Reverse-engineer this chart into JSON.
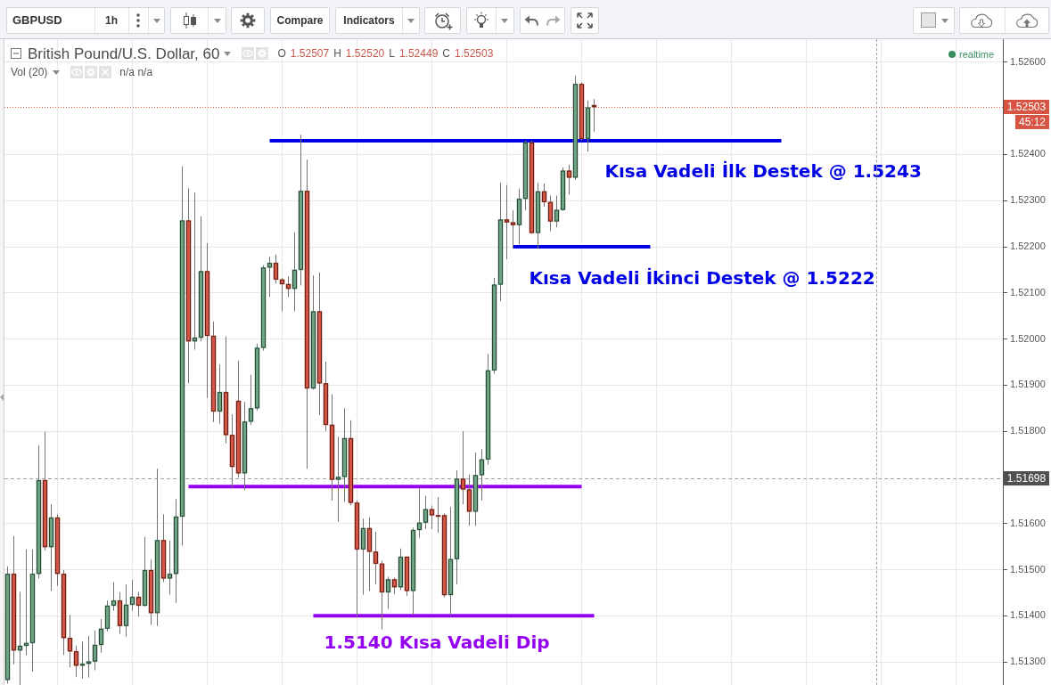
{
  "chart_data": {
    "type": "candlestick",
    "title": "British Pound/U.S. Dollar, 60",
    "categories": [
      null,
      null,
      null,
      null,
      null,
      null,
      null,
      null,
      null,
      null,
      null,
      null,
      null,
      null,
      null,
      null,
      null,
      null,
      null,
      null,
      null,
      null,
      null,
      null,
      null,
      null,
      null,
      null,
      null,
      null,
      null,
      null,
      null,
      null,
      null,
      null,
      null,
      null,
      null,
      null,
      null,
      null,
      null,
      null,
      null,
      null,
      null,
      null,
      null,
      null,
      null,
      null,
      null,
      null,
      null,
      null,
      null,
      null,
      null,
      null,
      null,
      null,
      null,
      null,
      null,
      null,
      null,
      null,
      null,
      null,
      null,
      null,
      null,
      null,
      null,
      null,
      null,
      null,
      null,
      null,
      null,
      null,
      null,
      null,
      null,
      null,
      null,
      null,
      null,
      null,
      null,
      null,
      null,
      null,
      null,
      null,
      null,
      null,
      null,
      null,
      null,
      null,
      null,
      null,
      null,
      null,
      null,
      null,
      null,
      null,
      null,
      null,
      null,
      null,
      null,
      null,
      null,
      null,
      null,
      null,
      null,
      null,
      null,
      null,
      null,
      null,
      null,
      null,
      null,
      null,
      null,
      null,
      null,
      null,
      null,
      null,
      null,
      null,
      null,
      null,
      null,
      null,
      null,
      null,
      null,
      null,
      null,
      null,
      null,
      null,
      null,
      null,
      null,
      null,
      null,
      null,
      null,
      null,
      null,
      null
    ],
    "ohlc": [
      [
        1.51261,
        1.51507,
        1.51253,
        1.51491
      ],
      [
        1.51491,
        1.51573,
        1.51295,
        1.51325
      ],
      [
        1.51325,
        1.51452,
        1.5125,
        1.51335
      ],
      [
        1.51335,
        1.51544,
        1.51314,
        1.51341
      ],
      [
        1.51341,
        1.51544,
        1.51279,
        1.51491
      ],
      [
        1.51491,
        1.5177,
        1.51481,
        1.51694
      ],
      [
        1.51694,
        1.51799,
        1.51542,
        1.51549
      ],
      [
        1.51549,
        1.51642,
        1.51454,
        1.51613
      ],
      [
        1.51613,
        1.5162,
        1.51465,
        1.51491
      ],
      [
        1.51491,
        1.51499,
        1.51315,
        1.51352
      ],
      [
        1.51352,
        1.51402,
        1.51288,
        1.51323
      ],
      [
        1.51323,
        1.51335,
        1.51267,
        1.51292
      ],
      [
        1.51292,
        1.51344,
        1.51264,
        1.51296
      ],
      [
        1.51296,
        1.51356,
        1.51266,
        1.51301
      ],
      [
        1.51301,
        1.51368,
        1.51282,
        1.51337
      ],
      [
        1.51337,
        1.51393,
        1.5132,
        1.51372
      ],
      [
        1.51372,
        1.51433,
        1.51366,
        1.51422
      ],
      [
        1.51422,
        1.51473,
        1.51411,
        1.51433
      ],
      [
        1.51433,
        1.51451,
        1.51361,
        1.51378
      ],
      [
        1.51378,
        1.51468,
        1.51355,
        1.51424
      ],
      [
        1.51424,
        1.51478,
        1.51411,
        1.51441
      ],
      [
        1.51441,
        1.51452,
        1.51398,
        1.51422
      ],
      [
        1.51422,
        1.51571,
        1.5142,
        1.51499
      ],
      [
        1.51499,
        1.51522,
        1.5138,
        1.51406
      ],
      [
        1.51406,
        1.51719,
        1.51378,
        1.51564
      ],
      [
        1.51564,
        1.5162,
        1.51473,
        1.51481
      ],
      [
        1.51481,
        1.51563,
        1.51446,
        1.51491
      ],
      [
        1.51491,
        1.51653,
        1.51428,
        1.51615
      ],
      [
        1.51615,
        1.52374,
        1.51552,
        1.52257
      ],
      [
        1.52257,
        1.52327,
        1.51904,
        1.51995
      ],
      [
        1.51995,
        1.52318,
        1.51977,
        1.52003
      ],
      [
        1.52003,
        1.52266,
        1.51995,
        1.52147
      ],
      [
        1.52147,
        1.52208,
        1.51872,
        1.52007
      ],
      [
        1.52007,
        1.52038,
        1.5182,
        1.51843
      ],
      [
        1.51843,
        1.51945,
        1.51816,
        1.51885
      ],
      [
        1.51885,
        1.52006,
        1.51774,
        1.51792
      ],
      [
        1.51792,
        1.51837,
        1.51678,
        1.51723
      ],
      [
        1.51866,
        1.51953,
        1.517,
        1.51709
      ],
      [
        1.51709,
        1.51864,
        1.51673,
        1.51821
      ],
      [
        1.51821,
        1.51922,
        1.51814,
        1.5185
      ],
      [
        1.5185,
        1.5199,
        1.51845,
        1.51981
      ],
      [
        1.51981,
        1.5216,
        1.51975,
        1.52155
      ],
      [
        1.52155,
        1.52179,
        1.52091,
        1.52165
      ],
      [
        1.52165,
        1.52183,
        1.5212,
        1.52129
      ],
      [
        1.52129,
        1.52133,
        1.5206,
        1.52119
      ],
      [
        1.52119,
        1.52136,
        1.52091,
        1.52109
      ],
      [
        1.52109,
        1.52231,
        1.5206,
        1.5215
      ],
      [
        1.5215,
        1.52443,
        1.52116,
        1.52321
      ],
      [
        1.52321,
        1.52389,
        1.51719,
        1.51893
      ],
      [
        1.51893,
        1.52138,
        1.5189,
        1.5206
      ],
      [
        1.5206,
        1.52144,
        1.51835,
        1.51904
      ],
      [
        1.51904,
        1.51951,
        1.518,
        1.51814
      ],
      [
        1.51814,
        1.5188,
        1.5165,
        1.51695
      ],
      [
        1.51695,
        1.51788,
        1.51604,
        1.51701
      ],
      [
        1.51701,
        1.5185,
        1.51647,
        1.51785
      ],
      [
        1.51785,
        1.51824,
        1.5164,
        1.51645
      ],
      [
        1.51645,
        1.5165,
        1.51398,
        1.51544
      ],
      [
        1.51544,
        1.51611,
        1.51446,
        1.5159
      ],
      [
        1.5159,
        1.51613,
        1.51454,
        1.51539
      ],
      [
        1.51539,
        1.51582,
        1.51468,
        1.51513
      ],
      [
        1.51513,
        1.5152,
        1.5137,
        1.51451
      ],
      [
        1.51451,
        1.51485,
        1.51415,
        1.51479
      ],
      [
        1.51479,
        1.51483,
        1.51447,
        1.51462
      ],
      [
        1.51462,
        1.51546,
        1.51456,
        1.51528
      ],
      [
        1.51528,
        1.51528,
        1.51443,
        1.51454
      ],
      [
        1.51454,
        1.51591,
        1.51402,
        1.51586
      ],
      [
        1.51586,
        1.51678,
        1.51569,
        1.51602
      ],
      [
        1.51602,
        1.5166,
        1.51588,
        1.51631
      ],
      [
        1.51631,
        1.51639,
        1.51588,
        1.51618
      ],
      [
        1.51618,
        1.51657,
        1.5158,
        1.51615
      ],
      [
        1.51618,
        1.51622,
        1.5144,
        1.51445
      ],
      [
        1.51445,
        1.51636,
        1.51401,
        1.51523
      ],
      [
        1.51523,
        1.51715,
        1.51468,
        1.51697
      ],
      [
        1.51697,
        1.518,
        1.51642,
        1.51674
      ],
      [
        1.51674,
        1.51706,
        1.51595,
        1.51626
      ],
      [
        1.51626,
        1.51754,
        1.51595,
        1.51705
      ],
      [
        1.51705,
        1.51761,
        1.5165,
        1.51739
      ],
      [
        1.51739,
        1.51968,
        1.51728,
        1.51932
      ],
      [
        1.51932,
        1.52133,
        1.51925,
        1.52118
      ],
      [
        1.52118,
        1.52339,
        1.52082,
        1.52259
      ],
      [
        1.52259,
        1.52334,
        1.52173,
        1.52253
      ],
      [
        1.52253,
        1.52279,
        1.52196,
        1.52247
      ],
      [
        1.52247,
        1.52326,
        1.52205,
        1.52304
      ],
      [
        1.52304,
        1.5243,
        1.52279,
        1.52426
      ],
      [
        1.52426,
        1.5243,
        1.52228,
        1.5223
      ],
      [
        1.5223,
        1.52339,
        1.52196,
        1.5232
      ],
      [
        1.5232,
        1.52337,
        1.52287,
        1.52297
      ],
      [
        1.52297,
        1.52311,
        1.52234,
        1.52255
      ],
      [
        1.52255,
        1.52311,
        1.52242,
        1.5228
      ],
      [
        1.5228,
        1.52372,
        1.52278,
        1.52365
      ],
      [
        1.52365,
        1.52378,
        1.52313,
        1.5235
      ],
      [
        1.5235,
        1.52571,
        1.52345,
        1.52553
      ],
      [
        1.52553,
        1.52556,
        1.5243,
        1.52434
      ],
      [
        1.52434,
        1.52517,
        1.52406,
        1.52502
      ],
      [
        1.52507,
        1.5252,
        1.52449,
        1.52503
      ],
      null,
      null,
      null,
      null,
      null,
      null,
      null,
      null,
      null,
      null,
      null,
      null,
      null,
      null,
      null,
      null,
      null,
      null,
      null,
      null,
      null,
      null,
      null,
      null,
      null,
      null,
      null,
      null,
      null,
      null,
      null,
      null,
      null,
      null,
      null,
      null,
      null,
      null,
      null,
      null,
      null,
      null,
      null,
      null,
      null,
      null,
      null,
      null,
      null,
      null,
      null,
      null,
      null,
      null,
      null,
      null,
      null,
      null,
      null,
      null,
      null,
      null,
      null,
      null,
      null
    ],
    "colors": [
      "#6ba583",
      "#d75442",
      "#6ba583",
      "#6ba583",
      "#6ba583",
      "#6ba583",
      "#d75442",
      "#6ba583",
      "#d75442",
      "#d75442",
      "#d75442",
      "#d75442",
      "#6ba583",
      "#6ba583",
      "#6ba583",
      "#6ba583",
      "#6ba583",
      "#6ba583",
      "#d75442",
      "#6ba583",
      "#6ba583",
      "#d75442",
      "#6ba583",
      "#d75442",
      "#6ba583",
      "#d75442",
      "#6ba583",
      "#6ba583",
      "#6ba583",
      "#d75442",
      "#6ba583",
      "#6ba583",
      "#d75442",
      "#d75442",
      "#6ba583",
      "#d75442",
      "#d75442",
      "#d75442",
      "#6ba583",
      "#6ba583",
      "#6ba583",
      "#6ba583",
      "#6ba583",
      "#d75442",
      "#d75442",
      "#d75442",
      "#6ba583",
      "#6ba583",
      "#d75442",
      "#6ba583",
      "#d75442",
      "#d75442",
      "#d75442",
      "#6ba583",
      "#6ba583",
      "#d75442",
      "#d75442",
      "#6ba583",
      "#d75442",
      "#d75442",
      "#d75442",
      "#6ba583",
      "#d75442",
      "#6ba583",
      "#d75442",
      "#6ba583",
      "#6ba583",
      "#6ba583",
      "#d75442",
      "#d75442",
      "#d75442",
      "#6ba583",
      "#6ba583",
      "#d75442",
      "#d75442",
      "#6ba583",
      "#6ba583",
      "#6ba583",
      "#6ba583",
      "#6ba583",
      "#d75442",
      "#d75442",
      "#6ba583",
      "#6ba583",
      "#d75442",
      "#6ba583",
      "#d75442",
      "#d75442",
      "#6ba583",
      "#6ba583",
      "#d75442",
      "#6ba583",
      "#d75442",
      "#6ba583",
      "#d75442",
      null,
      null,
      null,
      null,
      null,
      null,
      null,
      null,
      null,
      null,
      null,
      null,
      null,
      null,
      null,
      null,
      null,
      null,
      null,
      null,
      null,
      null,
      null,
      null,
      null,
      null,
      null,
      null,
      null,
      null,
      null,
      null,
      null,
      null,
      null,
      null,
      null,
      null,
      null,
      null,
      null,
      null,
      null,
      null,
      null,
      null,
      null,
      null,
      null,
      null,
      null,
      null,
      null,
      null,
      null,
      null,
      null,
      null,
      null,
      null,
      null,
      null,
      null,
      null,
      null
    ],
    "series": [
      {
        "type": "line",
        "name": "Kısa Vadeli İlk Destek @ 1.5243",
        "color": "#0000e6",
        "values": [
          null,
          null,
          null,
          null,
          null,
          null,
          null,
          null,
          null,
          null,
          null,
          null,
          null,
          null,
          null,
          null,
          null,
          null,
          null,
          null,
          null,
          null,
          null,
          null,
          null,
          null,
          null,
          null,
          null,
          null,
          null,
          null,
          null,
          null,
          null,
          null,
          null,
          null,
          null,
          null,
          null,
          null,
          1.5243,
          null,
          null,
          null,
          null,
          null,
          null,
          null,
          null,
          null,
          null,
          null,
          null,
          null,
          null,
          null,
          null,
          null,
          null,
          null,
          null,
          null,
          null,
          null,
          null,
          null,
          null,
          null,
          null,
          null,
          null,
          null,
          null,
          null,
          null,
          null,
          null,
          null,
          null,
          null,
          null,
          null,
          null,
          null,
          null,
          null,
          null,
          null,
          null,
          null,
          null,
          null,
          null,
          null,
          null,
          null,
          null,
          null,
          null,
          null,
          null,
          null,
          null,
          null,
          null,
          null,
          null,
          null,
          null,
          null,
          null,
          null,
          null,
          null,
          null,
          null,
          null,
          null,
          null,
          null,
          null,
          null,
          1.5243,
          null,
          null,
          null,
          null,
          null,
          null,
          null,
          null,
          null,
          null,
          null,
          null,
          null,
          null,
          null,
          null,
          null,
          null,
          null,
          null,
          null,
          null,
          null,
          null,
          null,
          null,
          null,
          null,
          null,
          null,
          null,
          null,
          null,
          null,
          null
        ]
      },
      {
        "type": "line",
        "name": "Kısa Vadeli İkinci Destek @ 1.5222",
        "color": "#0000e6",
        "values": [
          null,
          null,
          null,
          null,
          null,
          null,
          null,
          null,
          null,
          null,
          null,
          null,
          null,
          null,
          null,
          null,
          null,
          null,
          null,
          null,
          null,
          null,
          null,
          null,
          null,
          null,
          null,
          null,
          null,
          null,
          null,
          null,
          null,
          null,
          null,
          null,
          null,
          null,
          null,
          null,
          null,
          null,
          null,
          null,
          null,
          null,
          null,
          null,
          null,
          null,
          null,
          null,
          null,
          null,
          null,
          null,
          null,
          null,
          null,
          null,
          null,
          null,
          null,
          null,
          null,
          null,
          null,
          null,
          null,
          null,
          null,
          null,
          null,
          null,
          null,
          null,
          null,
          null,
          null,
          null,
          null,
          1.522,
          null,
          null,
          null,
          null,
          null,
          null,
          null,
          null,
          null,
          null,
          null,
          null,
          null,
          null,
          null,
          null,
          null,
          null,
          null,
          null,
          null,
          1.522,
          null,
          null,
          null,
          null,
          null,
          null,
          null,
          null,
          null,
          null,
          null,
          null,
          null,
          null,
          null,
          null,
          null,
          null,
          null,
          null,
          null,
          null,
          null,
          null,
          null,
          null,
          null,
          null,
          null,
          null,
          null,
          null,
          null,
          null,
          null,
          null,
          null,
          null,
          null,
          null,
          null,
          null,
          null,
          null,
          null,
          null,
          null,
          null,
          null,
          null,
          null,
          null,
          null,
          null,
          null,
          null
        ]
      },
      {
        "type": "line",
        "color": "#9400f0",
        "values": [
          null,
          null,
          null,
          null,
          null,
          null,
          null,
          null,
          null,
          null,
          null,
          null,
          null,
          null,
          null,
          null,
          null,
          null,
          null,
          null,
          null,
          null,
          null,
          null,
          null,
          null,
          null,
          null,
          null,
          1.5168,
          null,
          null,
          null,
          null,
          null,
          null,
          null,
          null,
          null,
          null,
          null,
          null,
          null,
          null,
          null,
          null,
          null,
          null,
          null,
          null,
          null,
          null,
          null,
          null,
          null,
          null,
          null,
          null,
          null,
          null,
          null,
          null,
          null,
          null,
          null,
          null,
          null,
          null,
          null,
          null,
          null,
          null,
          null,
          null,
          null,
          null,
          null,
          null,
          null,
          null,
          null,
          null,
          null,
          null,
          null,
          null,
          null,
          null,
          null,
          null,
          null,
          null,
          1.5168,
          null,
          null,
          null,
          null,
          null,
          null,
          null,
          null,
          null,
          null,
          null,
          null,
          null,
          null,
          null,
          null,
          null,
          null,
          null,
          null,
          null,
          null,
          null,
          null,
          null,
          null,
          null,
          null,
          null,
          null,
          null,
          null,
          null,
          null,
          null,
          null,
          null,
          null,
          null,
          null,
          null,
          null,
          null,
          null,
          null,
          null,
          null,
          null,
          null,
          null,
          null,
          null,
          null,
          null,
          null,
          null,
          null,
          null,
          null,
          null,
          null,
          null,
          null,
          null,
          null,
          null,
          null
        ]
      },
      {
        "type": "line",
        "name": "1.5140 Kısa Vadeli Dip",
        "color": "#9400f0",
        "values": [
          null,
          null,
          null,
          null,
          null,
          null,
          null,
          null,
          null,
          null,
          null,
          null,
          null,
          null,
          null,
          null,
          null,
          null,
          null,
          null,
          null,
          null,
          null,
          null,
          null,
          null,
          null,
          null,
          null,
          null,
          null,
          null,
          null,
          null,
          null,
          null,
          null,
          null,
          null,
          null,
          null,
          null,
          null,
          null,
          null,
          null,
          null,
          null,
          null,
          1.514,
          null,
          null,
          null,
          null,
          null,
          null,
          null,
          null,
          null,
          null,
          null,
          null,
          null,
          null,
          null,
          null,
          null,
          null,
          null,
          null,
          null,
          null,
          null,
          null,
          null,
          null,
          null,
          null,
          null,
          null,
          null,
          null,
          null,
          null,
          null,
          null,
          null,
          null,
          null,
          null,
          null,
          null,
          null,
          null,
          1.514,
          null,
          null,
          null,
          null,
          null,
          null,
          null,
          null,
          null,
          null,
          null,
          null,
          null,
          null,
          null,
          null,
          null,
          null,
          null,
          null,
          null,
          null,
          null,
          null,
          null,
          null,
          null,
          null,
          null,
          null,
          null,
          null,
          null,
          null,
          null,
          null,
          null,
          null,
          null,
          null,
          null,
          null,
          null,
          null,
          null,
          null,
          null,
          null,
          null,
          null,
          null,
          null,
          null,
          null,
          null,
          null,
          null,
          null,
          null,
          null,
          null,
          null,
          null,
          null,
          null
        ]
      }
    ],
    "ylim": [
      1.5125,
      1.5265
    ],
    "yticks": [
      {
        "value": 1.513,
        "label": "1.51300"
      },
      {
        "value": 1.514,
        "label": "1.51400"
      },
      {
        "value": 1.515,
        "label": "1.51500"
      },
      {
        "value": 1.516,
        "label": "1.51600"
      },
      {
        "value": 1.518,
        "label": "1.51800"
      },
      {
        "value": 1.519,
        "label": "1.51900"
      },
      {
        "value": 1.52,
        "label": "1.52000"
      },
      {
        "value": 1.521,
        "label": "1.52100"
      },
      {
        "value": 1.522,
        "label": "1.52200"
      },
      {
        "value": 1.523,
        "label": "1.52300"
      },
      {
        "value": 1.524,
        "label": "1.52400"
      },
      {
        "value": 1.526,
        "label": "1.52600"
      }
    ],
    "grid": true,
    "tick_labels": "y",
    "ref_lines": [
      {
        "axis": "y",
        "value": 1.52503,
        "label": "1.52503",
        "color": "#d75442",
        "line_style": "dotted"
      },
      {
        "axis": "y",
        "value": 1.51698,
        "label": "1.51698",
        "color": "#a0a0a0",
        "line_style": "dashed"
      }
    ],
    "annotations": [
      "GBPUSD",
      "1h",
      "Compare",
      "Indicators",
      "O 1.52507 H 1.52520 L 1.52449 C 1.52503",
      "Vol (20)",
      "n/a n/a",
      "realtime",
      "45:12"
    ]
  }
}
